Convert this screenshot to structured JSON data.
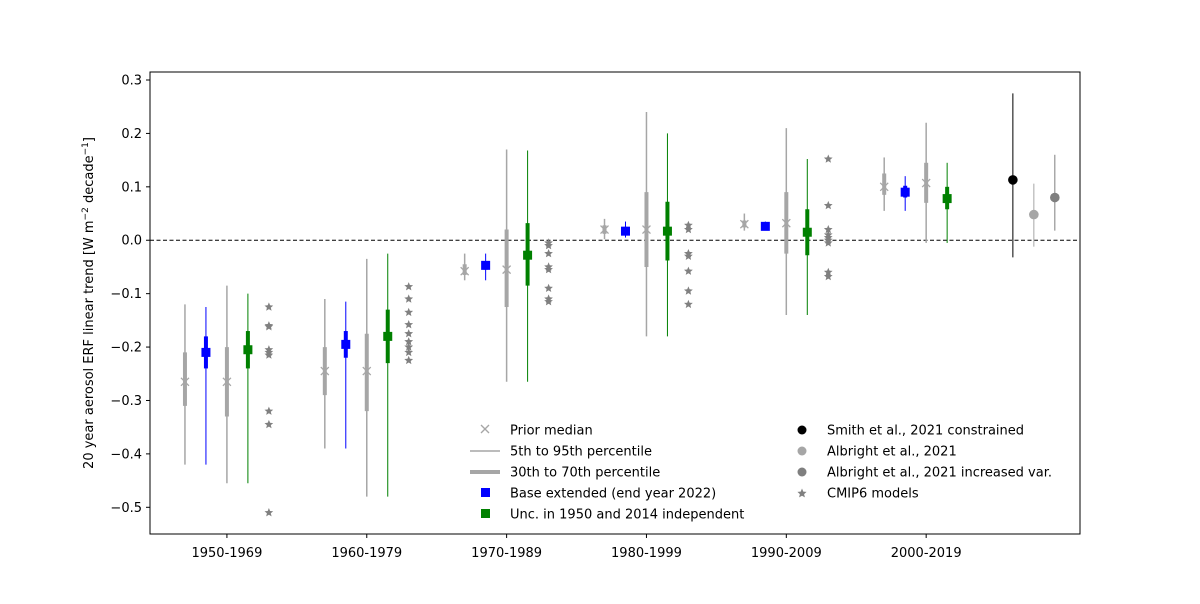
{
  "chart_data": {
    "type": "scatter",
    "title": "",
    "xlabel": "",
    "ylabel": "20 year aerosol ERF linear trend [W m",
    "ylabel_sup1": "−2",
    "ylabel_mid": " decade",
    "ylabel_sup2": "−1",
    "ylabel_end": "]",
    "ylim": [
      -0.55,
      0.315
    ],
    "yticks": [
      -0.5,
      -0.4,
      -0.3,
      -0.2,
      -0.1,
      0.0,
      0.1,
      0.2,
      0.3
    ],
    "ytick_labels": [
      "−0.5",
      "−0.4",
      "−0.3",
      "−0.2",
      "−0.1",
      "0.0",
      "0.1",
      "0.2",
      "0.3"
    ],
    "categories": [
      "1950-1969",
      "1960-1979",
      "1970-1989",
      "1980-1999",
      "1990-2009",
      "2000-2019"
    ],
    "zero_line": 0.0,
    "legend": {
      "placement": "lower-center",
      "left_entries": [
        "Prior median",
        "5th to 95th percentile",
        "30th to 70th percentile",
        "Base extended (end year 2022)",
        "Unc. in 1950 and 2014 independent"
      ],
      "right_entries": [
        "Smith et al., 2021 constrained",
        "Albright et al., 2021",
        "Albright et al., 2021 increased var.",
        "CMIP6 models"
      ]
    },
    "colors": {
      "prior": "#a6a6a6",
      "base_extended": "#0000ff",
      "unc_independent": "#008000",
      "smith": "#000000",
      "albright": "#a6a6a6",
      "albright_var": "#7f7f7f",
      "cmip6": "#808080"
    },
    "series": [
      {
        "name": "Prior median",
        "offset": -0.3,
        "median": [
          -0.265,
          -0.245,
          -0.058,
          0.02,
          0.03,
          0.1
        ],
        "p5": [
          -0.42,
          -0.39,
          -0.075,
          0.002,
          0.018,
          0.055
        ],
        "p95": [
          -0.12,
          -0.11,
          -0.025,
          0.04,
          0.05,
          0.155
        ],
        "p30": [
          -0.31,
          -0.29,
          -0.065,
          0.012,
          0.024,
          0.085
        ],
        "p70": [
          -0.21,
          -0.2,
          -0.045,
          0.028,
          0.037,
          0.125
        ]
      },
      {
        "name": "Base extended (end year 2022)",
        "offset": -0.15,
        "median": [
          -0.21,
          -0.195,
          -0.047,
          0.017,
          0.026,
          0.09
        ],
        "p5": [
          -0.42,
          -0.39,
          -0.075,
          0.005,
          0.02,
          0.055
        ],
        "p95": [
          -0.125,
          -0.115,
          -0.025,
          0.035,
          0.035,
          0.12
        ],
        "p30": [
          -0.24,
          -0.22,
          -0.055,
          0.01,
          0.022,
          0.08
        ],
        "p70": [
          -0.18,
          -0.17,
          -0.04,
          0.025,
          0.032,
          0.102
        ]
      },
      {
        "name": "Prior median (Unc.)",
        "offset": 0.0,
        "median": [
          -0.265,
          -0.245,
          -0.055,
          0.02,
          0.032,
          0.107
        ],
        "p5": [
          -0.455,
          -0.48,
          -0.265,
          -0.18,
          -0.14,
          -0.005
        ],
        "p95": [
          -0.085,
          -0.035,
          0.17,
          0.24,
          0.21,
          0.22
        ],
        "p30": [
          -0.33,
          -0.32,
          -0.125,
          -0.05,
          -0.025,
          0.07
        ],
        "p70": [
          -0.2,
          -0.175,
          0.02,
          0.09,
          0.09,
          0.145
        ]
      },
      {
        "name": "Unc. in 1950 and 2014 independent",
        "offset": 0.15,
        "median": [
          -0.205,
          -0.18,
          -0.028,
          0.017,
          0.015,
          0.078
        ],
        "p5": [
          -0.455,
          -0.48,
          -0.265,
          -0.18,
          -0.14,
          -0.005
        ],
        "p95": [
          -0.1,
          -0.025,
          0.168,
          0.2,
          0.152,
          0.145
        ],
        "p30": [
          -0.24,
          -0.23,
          -0.085,
          -0.038,
          -0.028,
          0.058
        ],
        "p70": [
          -0.17,
          -0.13,
          0.032,
          0.072,
          0.058,
          0.1
        ]
      }
    ],
    "cmip6_offset": 0.3,
    "cmip6_models": [
      [
        -0.125,
        -0.16,
        -0.162,
        -0.205,
        -0.21,
        -0.215,
        -0.32,
        -0.345,
        -0.51
      ],
      [
        -0.087,
        -0.11,
        -0.135,
        -0.158,
        -0.175,
        -0.19,
        -0.2,
        -0.21,
        -0.225
      ],
      [
        -0.005,
        -0.01,
        -0.025,
        -0.05,
        -0.055,
        -0.09,
        -0.11,
        -0.115
      ],
      [
        0.028,
        0.02,
        -0.025,
        -0.03,
        -0.058,
        -0.095,
        -0.12
      ],
      [
        0.152,
        0.065,
        0.02,
        0.01,
        0.005,
        0.0,
        -0.005,
        -0.06,
        -0.068
      ],
      []
    ],
    "extra_2000_2019": [
      {
        "name": "Smith et al., 2021 constrained",
        "xpos": 5.62,
        "median": 0.113,
        "p5": -0.032,
        "p95": 0.275
      },
      {
        "name": "Albright et al., 2021",
        "xpos": 5.77,
        "median": 0.048,
        "p5": -0.012,
        "p95": 0.106
      },
      {
        "name": "Albright et al., 2021 increased var.",
        "xpos": 5.92,
        "median": 0.08,
        "p5": 0.018,
        "p95": 0.16
      }
    ]
  }
}
